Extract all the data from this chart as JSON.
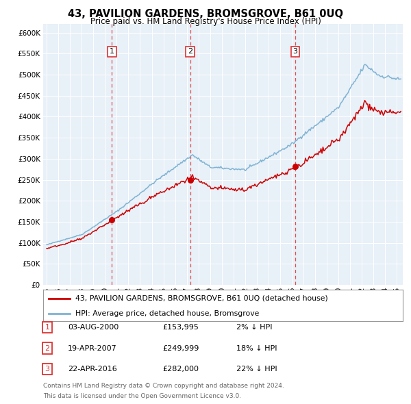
{
  "title": "43, PAVILION GARDENS, BROMSGROVE, B61 0UQ",
  "subtitle": "Price paid vs. HM Land Registry's House Price Index (HPI)",
  "ytick_values": [
    0,
    50000,
    100000,
    150000,
    200000,
    250000,
    300000,
    350000,
    400000,
    450000,
    500000,
    550000,
    600000
  ],
  "xlim_start": 1994.7,
  "xlim_end": 2025.5,
  "ylim_min": 0,
  "ylim_max": 620000,
  "hpi_color": "#7fb3d3",
  "price_color": "#cc0000",
  "vline_color": "#dd3333",
  "bg_color": "#e8f0f8",
  "grid_color": "#ffffff",
  "transactions": [
    {
      "num": 1,
      "date_num": 2000.58,
      "price": 153995,
      "label": "1",
      "date_str": "03-AUG-2000",
      "price_str": "£153,995",
      "pct": "2%"
    },
    {
      "num": 2,
      "date_num": 2007.29,
      "price": 249999,
      "label": "2",
      "date_str": "19-APR-2007",
      "price_str": "£249,999",
      "pct": "18%"
    },
    {
      "num": 3,
      "date_num": 2016.3,
      "price": 282000,
      "label": "3",
      "date_str": "22-APR-2016",
      "price_str": "£282,000",
      "pct": "22%"
    }
  ],
  "legend_line1": "43, PAVILION GARDENS, BROMSGROVE, B61 0UQ (detached house)",
  "legend_line2": "HPI: Average price, detached house, Bromsgrove",
  "footnote1": "Contains HM Land Registry data © Crown copyright and database right 2024.",
  "footnote2": "This data is licensed under the Open Government Licence v3.0."
}
